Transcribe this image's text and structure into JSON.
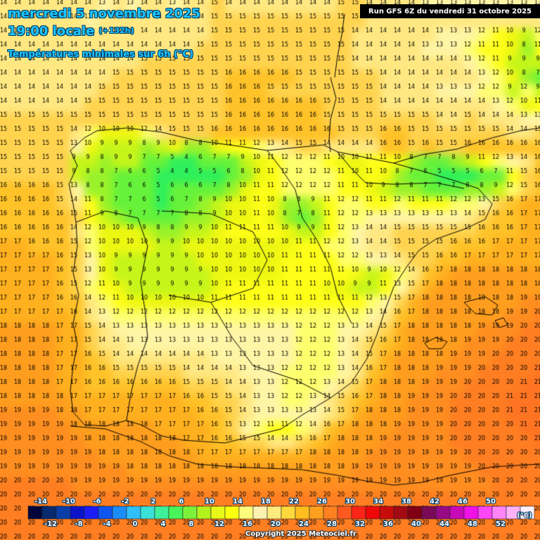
{
  "header": {
    "date_line": "mercredi 5 novembre 2025",
    "time_label": "19:00 locale",
    "lead_time": "(+132h)",
    "parameter": "Températures minimales sur 6h (°C)",
    "run_info": "Run GFS 6Z du vendredi 31 octobre 2025"
  },
  "footer": {
    "copyright": "Copyright 2025 Meteociel.fr"
  },
  "legend": {
    "unit": "(°C)",
    "top_labels": [
      "-14",
      "-10",
      "-6",
      "-2",
      "2",
      "6",
      "10",
      "14",
      "18",
      "22",
      "26",
      "30",
      "34",
      "38",
      "42",
      "46",
      "50"
    ],
    "bottom_labels": [
      "-12",
      "-8",
      "-4",
      "0",
      "4",
      "8",
      "12",
      "16",
      "20",
      "24",
      "28",
      "32",
      "36",
      "40",
      "44",
      "48",
      "52"
    ],
    "colors": [
      "#02063a",
      "#052a6e",
      "#0a3da8",
      "#0b14c8",
      "#1c1cf5",
      "#0f55f0",
      "#1c8cf7",
      "#2fc0fb",
      "#3be0d8",
      "#3ef09a",
      "#48f45a",
      "#7cf23a",
      "#b4f21e",
      "#e8f818",
      "#ffff10",
      "#ffff7c",
      "#fff2b0",
      "#ffea7e",
      "#ffd83c",
      "#ffbe1e",
      "#ffa01e",
      "#ff8020",
      "#ff5a20",
      "#ff2418",
      "#ee0808",
      "#c80c0c",
      "#a30a14",
      "#820014",
      "#7a0a55",
      "#980a86",
      "#c80ab8",
      "#f010e8",
      "#ff46f8",
      "#ff84f8",
      "#ffb2f8",
      "#fff0fa"
    ]
  },
  "map": {
    "cell_size_px": 20,
    "grid": [
      "14 14 14 14 14 14 14 13 14 13 14 14 13 14 14 15 14 14 14 14 14 14 14 14 15 15 14 14 14 14 13 13 13 13 13 13 13 13 13 13",
      "14 14 14 14 14 14 13 14 14 14 14 14 14 14 14 15 15 15 15 15 15 15 15 15 15 15 14 14 14 14 14 14 14 14 14 14 14 14 14 14",
      "14 14 14 14 14 14 14 14 14 14 14 14 14 14 14 15 15 15 15 15 15 15 15 15 15 14 14 14 14 14 14 13 13 13 12 11 10 9 12 12",
      "14 14 14 14 14 14 14 14 14 14 14 14 14 14 15 15 15 15 15 15 15 15 15 15 15 14 14 14 14 14 13 13 13 12 11 11 10 8 11 12",
      "14 14 14 14 14 14 14 14 14 14 15 15 15 15 15 15 15 15 15 15 15 15 15 15 15 14 14 14 14 14 14 14 14 13 12 11 9 9 9 9",
      "14 14 14 14 14 14 14 14 15 15 15 15 15 15 15 15 16 16 16 16 16 15 15 15 15 15 15 14 14 14 14 14 14 14 13 12 10 8 7 8",
      "14 14 14 14 14 14 14 15 15 15 15 15 15 15 15 15 16 16 16 15 15 15 15 15 15 15 15 14 14 14 14 13 13 13 12 12 9 12 9 12",
      "14 14 14 14 14 14 15 15 15 15 15 15 15 15 15 15 16 16 16 16 16 16 16 15 15 15 15 14 14 14 14 14 14 14 14 13 12 10 11 13",
      "15 15 15 15 15 15 15 15 15 15 15 15 15 15 15 15 16 16 16 16 16 16 16 15 15 15 15 15 15 15 15 14 14 15 14 14 14 13 13 13",
      "15 15 15 15 15 14 12 10 10 10 12 14 15 15 15 16 16 16 16 16 16 16 16 16 15 15 15 16 16 15 15 15 15 15 15 15 14 14 15 15",
      "15 15 15 15 15 13 10 9 9 9 8 9 10 8 8 10 11 11 12 13 14 15 15 14 14 14 14 16 16 15 16 15 15 16 16 16 16 16 16 16",
      "15 15 15 15 15 9 9 8 9 9 7 7 5 4 6 7 7 9 10 11 12 12 12 11 10 10 11 11 10 8 7 7 8 9 11 12 13 14 16 16",
      "15 15 15 15 15 9 8 8 7 6 6 5 4 4 5 5 6 8 10 11 12 12 12 12 11 10 11 10 8 7 6 5 5 5 6 7 11 15 16 17",
      "16 16 16 16 15 13 8 8 7 6 6 5 6 6 6 7 8 10 11 11 12 12 12 12 11 11 10 9 8 8 7 7 7 8 8 9 12 15 16 17",
      "16 16 16 16 15 14 11 8 7 7 6 5 6 7 8 9 10 10 11 10 8 8 9 11 12 12 11 11 12 11 11 11 12 12 13 15 16 17 17 17",
      "16 16 16 16 16 15 11 9 8 7 7 7 7 8 8 9 10 10 11 10 8 7 8 11 12 12 13 13 13 13 13 13 13 14 15 16 16 17 17 17",
      "16 16 16 16 16 14 12 10 10 10 9 8 8 9 9 10 11 11 11 11 10 9 9 11 12 13 14 14 15 15 15 15 15 15 16 16 16 17 17 17",
      "17 17 16 16 16 15 12 10 10 10 10 9 9 10 10 10 10 10 10 10 10 11 11 12 12 13 14 14 15 15 15 15 16 16 16 17 17 17 17 17",
      "17 17 17 17 16 15 13 10 9 9 9 9 9 9 10 10 10 10 10 10 11 11 11 11 12 12 13 13 14 15 15 16 16 17 17 17 17 17 17 17",
      "17 17 17 17 16 15 13 10 9 9 9 9 9 9 9 10 10 10 10 10 11 11 11 11 11 10 9 10 12 14 16 17 18 18 18 18 18 18 18 18",
      "17 17 17 17 16 15 12 11 10 9 9 9 9 9 9 10 11 11 11 11 11 11 11 10 10 9 9 11 13 15 17 18 18 18 18 18 18 18 18 18",
      "17 17 17 17 16 16 14 12 11 10 10 10 10 10 10 11 11 11 11 11 11 11 11 11 11 11 12 13 15 17 18 18 18 18 18 18 18 19 19 19",
      "17 17 17 17 17 16 14 13 12 12 12 12 12 12 12 12 12 12 12 12 12 12 12 12 12 12 13 14 16 17 18 18 18 18 18 18 19 19 20 20",
      "18 18 18 18 17 17 15 14 13 13 13 13 13 13 13 13 13 13 13 13 13 12 12 12 13 13 14 15 17 18 18 18 18 18 19 19 19 20 20 20",
      "18 18 18 18 17 17 15 14 14 13 13 13 13 13 13 13 13 13 13 13 13 12 12 12 13 14 15 16 17 18 18 18 18 19 19 19 20 20 20 20",
      "18 18 18 18 17 17 16 15 14 14 14 14 14 14 14 13 13 13 13 13 13 12 12 12 13 14 15 17 18 18 18 18 19 19 19 20 20 20 20 21",
      "18 18 18 18 17 17 16 16 15 15 15 15 15 14 14 14 14 13 13 13 12 12 12 12 13 14 16 17 18 18 18 19 19 19 20 20 20 20 21 21",
      "18 18 18 18 17 17 16 16 16 16 16 16 16 15 15 15 14 14 13 13 12 12 12 13 14 15 17 18 18 18 19 19 19 20 20 20 20 21 21 21",
      "18 18 18 18 18 17 17 17 17 17 17 17 17 16 16 15 15 14 13 13 12 12 13 14 15 16 17 18 18 19 19 19 20 20 20 20 21 21 21 21",
      "19 19 19 19 18 18 17 17 17 17 17 17 17 17 16 16 15 14 13 13 13 13 13 14 15 17 18 18 18 19 19 19 20 20 20 20 21 21 21 21",
      "19 19 19 19 19 18 18 18 18 18 18 17 17 17 17 16 15 13 12 11 11 12 14 16 17 18 18 18 19 19 19 19 20 20 20 20 20 21 21 21",
      "19 19 19 19 19 19 18 18 18 18 18 18 18 17 17 16 16 15 15 14 14 15 16 17 18 18 18 19 19 19 19 19 20 20 20 20 20 20 21 21",
      "19 19 19 19 19 19 19 18 18 18 18 18 18 18 17 17 17 17 17 17 17 17 18 18 18 18 19 19 19 19 19 19 19 20 20 20 20 20 20 20",
      "19 19 19 19 19 19 19 19 19 18 18 18 18 18 18 18 18 18 18 18 18 18 18 18 18 19 19 19 19 19 19 19 19 19 20 20 20 20 20 20",
      "20 20 20 20 20 19 19 19 19 19 19 19 19 19 19 19 19 19 19 19 19 19 19 19 19 19 19 19 19 19 19 19 19 19 19 20 20 20 20 20",
      "20 20 20 20 20 20 20 20 20 20 20 20 20 20 20 20 20 20 20 20 20 20 20 20 20 20 20 20 20 20 20 20 20 20 20 20 20 20 20 20",
      "20 20 20 20 20 20 20 20 20 20 20 20 20 20 20 20 20 20 20 20 20 20 20 20 20 20 20 20 20 20 20 20 20 20 20 20 20 20 20 20",
      "20 20 20 20 20 20 20 20 20 20 20 20 20 20 20 20 20 20 20 20 20 20 20 20 20 20 20 20 20 20 20 20 20 20 20 20 20 20 20 20",
      "20 20 20 20 20 20 20 20 20 20 20 20 20 20 20 20 20 20 20 20 20 20 20 20 20 20 20 20 20 20 20 20 20 20 20 20 20 20 20 20"
    ]
  }
}
